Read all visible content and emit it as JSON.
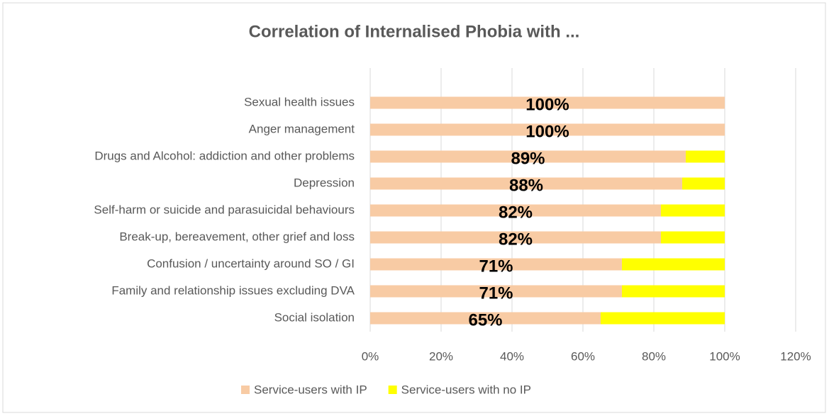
{
  "chart_data": {
    "type": "stacked_bar_horizontal",
    "title": "Correlation of Internalised Phobia with ...",
    "categories": [
      "Sexual health issues",
      "Anger management",
      "Drugs and Alcohol: addiction and other problems",
      "Depression",
      "Self-harm or suicide and parasuicidal behaviours",
      "Break-up, bereavement, other grief and loss",
      "Confusion / uncertainty around SO / GI",
      "Family and relationship issues excluding DVA",
      "Social isolation"
    ],
    "series": [
      {
        "name": "Service-users with IP",
        "color": "#f8cba4",
        "values": [
          100,
          100,
          89,
          88,
          82,
          82,
          71,
          71,
          65
        ],
        "value_labels": [
          "100%",
          "100%",
          "89%",
          "88%",
          "82%",
          "82%",
          "71%",
          "71%",
          "65%"
        ]
      },
      {
        "name": "Service-users with no IP",
        "color": "#ffff00",
        "values": [
          0,
          0,
          11,
          12,
          18,
          18,
          29,
          29,
          35
        ]
      }
    ],
    "xlim": [
      0,
      120
    ],
    "xticks": [
      {
        "value": 0,
        "label": "0%"
      },
      {
        "value": 20,
        "label": "20%"
      },
      {
        "value": 40,
        "label": "40%"
      },
      {
        "value": 60,
        "label": "60%"
      },
      {
        "value": 80,
        "label": "80%"
      },
      {
        "value": 100,
        "label": "100%"
      },
      {
        "value": 120,
        "label": "120%"
      }
    ],
    "grid": true,
    "legend": "bottom"
  }
}
